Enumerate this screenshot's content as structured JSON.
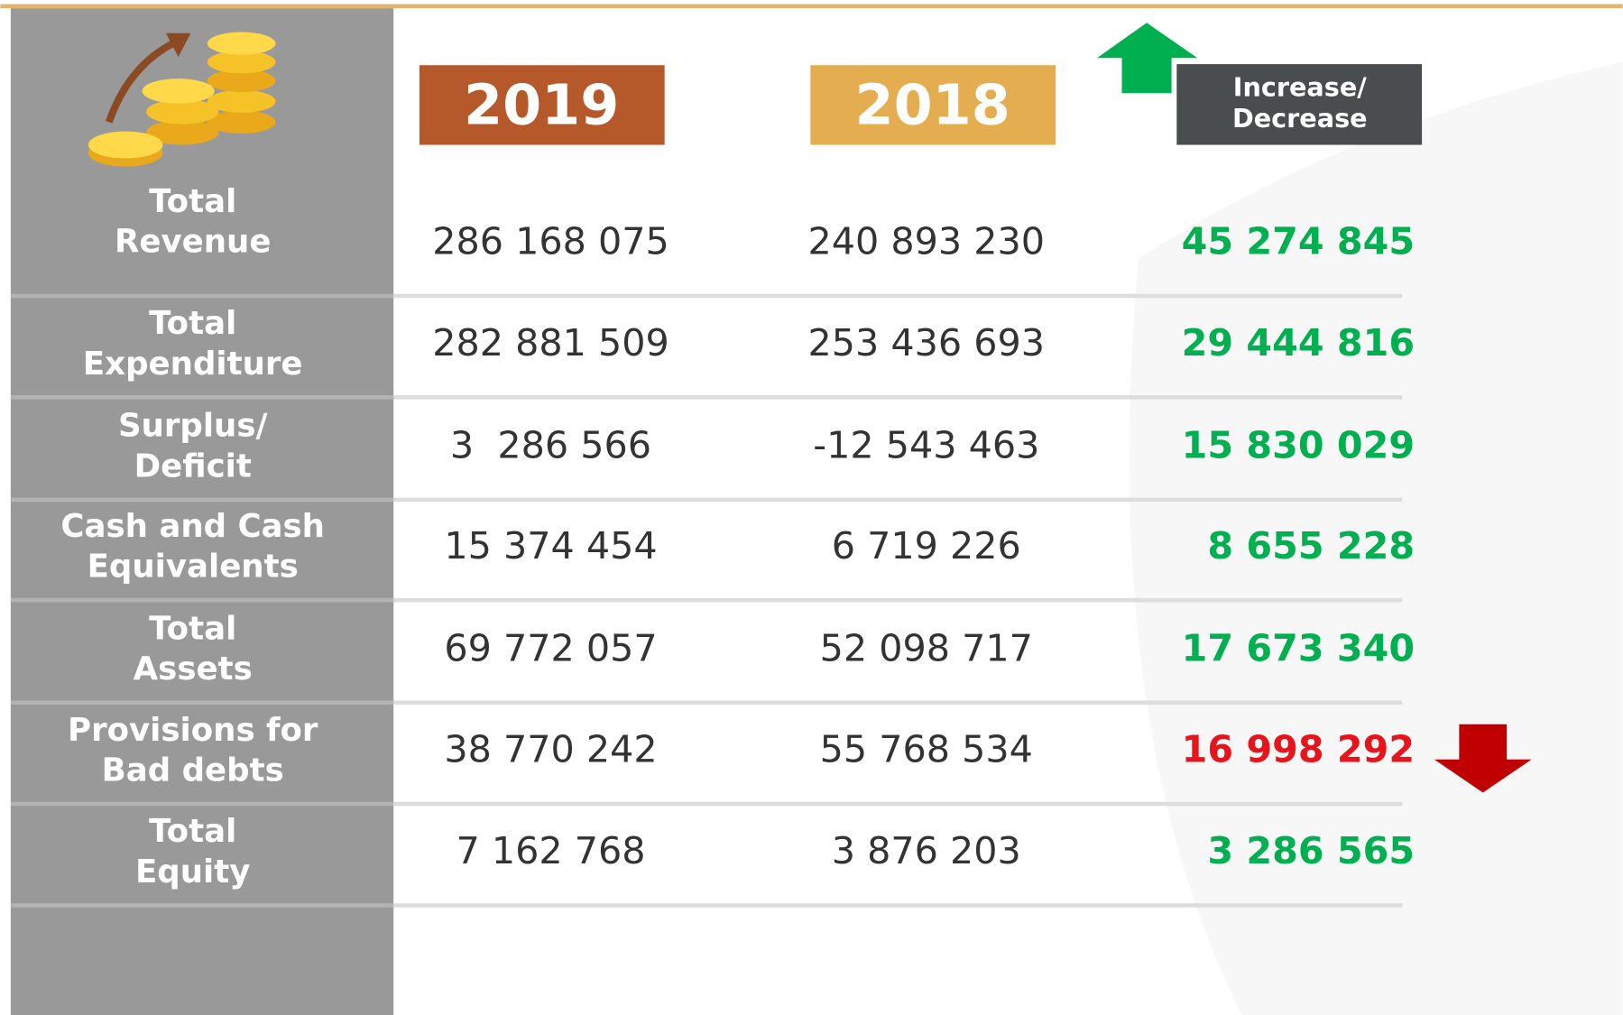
{
  "table": {
    "headers": [
      [
        "2019"
      ],
      [
        "2018"
      ],
      [
        "Increase/",
        "Decrease"
      ]
    ],
    "rows": [
      {
        "label": [
          "Total",
          "Revenue"
        ],
        "values": [
          "286 168 075",
          "240 893 230",
          "45 274 845"
        ],
        "color": "#00b050"
      },
      {
        "label": [
          "Total",
          "Expenditure"
        ],
        "values": [
          "282 881 509",
          "253 436 693",
          "29 444 816"
        ],
        "color": "#00b050"
      },
      {
        "label": [
          "Surplus/",
          "Deficit"
        ],
        "values": [
          "3  286 566",
          "-12 543 463",
          "15 830 029"
        ],
        "color": "#00b050"
      },
      {
        "label": [
          "Cash and Cash",
          "Equivalents"
        ],
        "values": [
          "15 374 454",
          "6 719 226",
          "8 655 228"
        ],
        "color": "#00b050"
      },
      {
        "label": [
          "Total",
          "Assets"
        ],
        "values": [
          "69 772 057",
          "52 098 717",
          "17 673 340"
        ],
        "color": "#00b050"
      },
      {
        "label": [
          "Provisions for",
          "Bad debts"
        ],
        "values": [
          "38 770 242",
          "55 768 534",
          "16 998 292"
        ],
        "color": "#e8141c"
      },
      {
        "label": [
          "Total",
          "Equity"
        ],
        "values": [
          "7 162 768",
          "3 876 203",
          "3 286 565"
        ],
        "color": "#00b050"
      }
    ]
  }
}
